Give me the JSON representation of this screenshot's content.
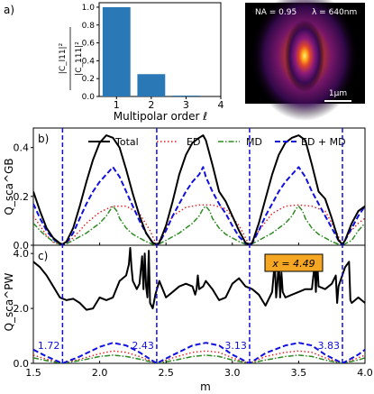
{
  "colors": {
    "total": "#000000",
    "ed": "#e41a1c",
    "md": "#2e8b22",
    "edmd": "#1010e0",
    "bar": "#2b78b6",
    "marker": "#1010e0",
    "badge_bg": "#f5a623"
  },
  "chart_data": [
    {
      "id": "a",
      "type": "bar",
      "panel_label": "a)",
      "categories": [
        "1",
        "2",
        "3"
      ],
      "values": [
        1.0,
        0.25,
        0.01
      ],
      "xlabel": "Multipolar order ℓ",
      "ylabel_num": "|C_l11|²",
      "ylabel_den": "|C_111|²",
      "xticks": [
        "1",
        "2",
        "3",
        "4"
      ],
      "yticks": [
        "0.0",
        "0.2",
        "0.4",
        "0.6",
        "0.8",
        "1.0"
      ],
      "xlim": [
        0.5,
        4
      ],
      "ylim": [
        0,
        1.05
      ]
    },
    {
      "id": "a-inset",
      "type": "heatmap",
      "na_label": "NA = 0.95",
      "lambda_label": "λ = 640nm",
      "scale_label": "1μm"
    },
    {
      "id": "b",
      "type": "line",
      "panel_label": "b)",
      "ylabel": "Q_sca^GB",
      "legend": [
        "Total",
        "ED",
        "MD",
        "ED + MD"
      ],
      "legend_position": "top",
      "xlim": [
        1.5,
        4.0
      ],
      "ylim": [
        0,
        0.48
      ],
      "yticks": [
        "0.0",
        "0.2",
        "0.4"
      ],
      "series": [
        {
          "name": "Total",
          "style": "solid",
          "x": [
            1.5,
            1.55,
            1.6,
            1.65,
            1.7,
            1.72,
            1.75,
            1.8,
            1.85,
            1.9,
            1.95,
            2.0,
            2.05,
            2.1,
            2.15,
            2.2,
            2.25,
            2.3,
            2.35,
            2.4,
            2.43,
            2.45,
            2.5,
            2.55,
            2.6,
            2.65,
            2.7,
            2.75,
            2.78,
            2.8,
            2.85,
            2.9,
            2.95,
            3.0,
            3.05,
            3.1,
            3.13,
            3.15,
            3.2,
            3.25,
            3.3,
            3.35,
            3.4,
            3.45,
            3.5,
            3.55,
            3.6,
            3.65,
            3.7,
            3.75,
            3.8,
            3.83,
            3.85,
            3.9,
            3.95,
            4.0
          ],
          "y": [
            0.22,
            0.14,
            0.07,
            0.03,
            0.008,
            0.004,
            0.015,
            0.07,
            0.16,
            0.26,
            0.35,
            0.42,
            0.45,
            0.44,
            0.4,
            0.31,
            0.21,
            0.12,
            0.05,
            0.01,
            0.004,
            0.01,
            0.08,
            0.18,
            0.29,
            0.37,
            0.42,
            0.44,
            0.45,
            0.43,
            0.33,
            0.22,
            0.18,
            0.12,
            0.06,
            0.01,
            0.004,
            0.01,
            0.09,
            0.19,
            0.29,
            0.37,
            0.42,
            0.44,
            0.45,
            0.43,
            0.33,
            0.22,
            0.19,
            0.11,
            0.02,
            0.004,
            0.02,
            0.09,
            0.14,
            0.16
          ]
        },
        {
          "name": "ED",
          "style": "dotted",
          "x": [
            1.5,
            1.55,
            1.6,
            1.65,
            1.72,
            1.8,
            1.9,
            2.0,
            2.1,
            2.2,
            2.3,
            2.38,
            2.43,
            2.48,
            2.55,
            2.65,
            2.75,
            2.85,
            2.95,
            3.05,
            3.13,
            3.2,
            3.3,
            3.4,
            3.5,
            3.6,
            3.7,
            3.78,
            3.83,
            3.88,
            3.95,
            4.0
          ],
          "y": [
            0.12,
            0.08,
            0.04,
            0.012,
            0.0,
            0.03,
            0.09,
            0.135,
            0.16,
            0.16,
            0.13,
            0.06,
            0.0,
            0.05,
            0.12,
            0.155,
            0.165,
            0.165,
            0.15,
            0.08,
            0.0,
            0.06,
            0.13,
            0.16,
            0.165,
            0.16,
            0.14,
            0.06,
            0.0,
            0.05,
            0.09,
            0.11
          ]
        },
        {
          "name": "MD",
          "style": "dashdot",
          "x": [
            1.5,
            1.55,
            1.6,
            1.65,
            1.7,
            1.72,
            1.75,
            1.8,
            1.85,
            1.9,
            1.95,
            2.0,
            2.05,
            2.08,
            2.1,
            2.13,
            2.15,
            2.2,
            2.25,
            2.3,
            2.35,
            2.4,
            2.43,
            2.45,
            2.5,
            2.55,
            2.6,
            2.65,
            2.7,
            2.75,
            2.78,
            2.8,
            2.83,
            2.85,
            2.9,
            2.95,
            3.0,
            3.05,
            3.1,
            3.13,
            3.15,
            3.2,
            3.25,
            3.3,
            3.35,
            3.4,
            3.45,
            3.48,
            3.5,
            3.53,
            3.55,
            3.6,
            3.65,
            3.7,
            3.75,
            3.8,
            3.83,
            3.85,
            3.9,
            3.95,
            4.0
          ],
          "y": [
            0.09,
            0.06,
            0.035,
            0.015,
            0.004,
            0.0,
            0.006,
            0.02,
            0.035,
            0.05,
            0.07,
            0.09,
            0.12,
            0.145,
            0.16,
            0.14,
            0.11,
            0.07,
            0.045,
            0.03,
            0.015,
            0.004,
            0.0,
            0.006,
            0.02,
            0.035,
            0.05,
            0.07,
            0.09,
            0.12,
            0.15,
            0.16,
            0.14,
            0.11,
            0.07,
            0.045,
            0.03,
            0.015,
            0.004,
            0.0,
            0.006,
            0.02,
            0.035,
            0.05,
            0.07,
            0.09,
            0.12,
            0.15,
            0.16,
            0.14,
            0.11,
            0.07,
            0.045,
            0.03,
            0.015,
            0.004,
            0.0,
            0.006,
            0.02,
            0.06,
            0.09
          ]
        },
        {
          "name": "ED + MD",
          "style": "dashed",
          "x": [
            1.5,
            1.55,
            1.6,
            1.65,
            1.7,
            1.72,
            1.75,
            1.8,
            1.85,
            1.9,
            1.95,
            2.0,
            2.05,
            2.1,
            2.15,
            2.2,
            2.25,
            2.3,
            2.35,
            2.4,
            2.43,
            2.45,
            2.5,
            2.55,
            2.6,
            2.65,
            2.7,
            2.75,
            2.78,
            2.8,
            2.85,
            2.9,
            2.95,
            3.0,
            3.05,
            3.1,
            3.13,
            3.15,
            3.2,
            3.25,
            3.3,
            3.35,
            3.4,
            3.45,
            3.5,
            3.55,
            3.6,
            3.65,
            3.7,
            3.75,
            3.8,
            3.83,
            3.85,
            3.9,
            3.95,
            4.0
          ],
          "y": [
            0.17,
            0.11,
            0.06,
            0.025,
            0.006,
            0.0,
            0.01,
            0.05,
            0.11,
            0.17,
            0.22,
            0.26,
            0.29,
            0.32,
            0.28,
            0.22,
            0.16,
            0.1,
            0.05,
            0.01,
            0.0,
            0.01,
            0.06,
            0.12,
            0.17,
            0.22,
            0.26,
            0.29,
            0.32,
            0.28,
            0.22,
            0.17,
            0.13,
            0.08,
            0.035,
            0.008,
            0.0,
            0.008,
            0.06,
            0.12,
            0.17,
            0.22,
            0.26,
            0.29,
            0.32,
            0.28,
            0.22,
            0.17,
            0.12,
            0.07,
            0.02,
            0.0,
            0.02,
            0.07,
            0.12,
            0.16
          ]
        }
      ]
    },
    {
      "id": "c",
      "type": "line",
      "panel_label": "c)",
      "ylabel": "Q_sca^PW",
      "annotation": "x = 4.49",
      "xlabel": "m",
      "xlim": [
        1.5,
        4.0
      ],
      "ylim": [
        0,
        4.3
      ],
      "xticks": [
        "1.5",
        "2.0",
        "2.5",
        "3.0",
        "3.5",
        "4.0"
      ],
      "yticks": [
        "0.0",
        "2.0",
        "4.0"
      ],
      "markers": [
        {
          "x": 1.72,
          "label": "1.72"
        },
        {
          "x": 2.43,
          "label": "2.43"
        },
        {
          "x": 3.13,
          "label": "3.13"
        },
        {
          "x": 3.83,
          "label": "3.83"
        }
      ],
      "series": [
        {
          "name": "Total",
          "style": "solid",
          "x": [
            1.5,
            1.55,
            1.6,
            1.65,
            1.7,
            1.75,
            1.8,
            1.85,
            1.9,
            1.95,
            2.0,
            2.05,
            2.1,
            2.15,
            2.2,
            2.22,
            2.23,
            2.24,
            2.25,
            2.28,
            2.3,
            2.32,
            2.33,
            2.34,
            2.35,
            2.36,
            2.37,
            2.38,
            2.4,
            2.42,
            2.45,
            2.5,
            2.55,
            2.6,
            2.65,
            2.7,
            2.72,
            2.73,
            2.74,
            2.75,
            2.78,
            2.8,
            2.85,
            2.9,
            2.95,
            3.0,
            3.05,
            3.1,
            3.15,
            3.2,
            3.25,
            3.3,
            3.32,
            3.33,
            3.34,
            3.35,
            3.36,
            3.37,
            3.38,
            3.4,
            3.45,
            3.5,
            3.55,
            3.6,
            3.62,
            3.63,
            3.64,
            3.65,
            3.7,
            3.75,
            3.78,
            3.79,
            3.8,
            3.85,
            3.88,
            3.89,
            3.9,
            3.95,
            4.0
          ],
          "y": [
            3.7,
            3.5,
            3.2,
            2.8,
            2.4,
            2.3,
            2.35,
            2.2,
            1.95,
            2.0,
            2.4,
            2.3,
            2.4,
            3.0,
            3.2,
            3.6,
            4.2,
            3.5,
            3.0,
            2.7,
            2.9,
            3.9,
            2.7,
            4.0,
            2.8,
            2.4,
            4.1,
            2.2,
            2.0,
            2.5,
            3.0,
            2.4,
            2.6,
            2.8,
            2.9,
            2.8,
            2.5,
            2.7,
            3.2,
            2.7,
            2.8,
            3.0,
            2.7,
            2.3,
            2.4,
            2.9,
            3.1,
            2.8,
            2.7,
            2.5,
            2.1,
            2.6,
            3.7,
            2.4,
            2.9,
            3.8,
            2.4,
            3.3,
            2.6,
            2.4,
            2.5,
            2.6,
            2.7,
            2.7,
            3.6,
            2.6,
            3.7,
            2.8,
            2.7,
            2.9,
            3.2,
            2.2,
            2.8,
            3.5,
            3.7,
            2.3,
            2.2,
            2.4,
            2.2
          ]
        },
        {
          "name": "ED",
          "style": "dotted",
          "x": [
            1.5,
            1.6,
            1.72,
            1.85,
            2.0,
            2.1,
            2.2,
            2.3,
            2.43,
            2.55,
            2.7,
            2.8,
            2.9,
            3.0,
            3.13,
            3.25,
            3.4,
            3.5,
            3.6,
            3.7,
            3.83,
            3.95,
            4.0
          ],
          "y": [
            0.3,
            0.15,
            0.0,
            0.15,
            0.35,
            0.45,
            0.4,
            0.25,
            0.0,
            0.2,
            0.4,
            0.45,
            0.4,
            0.2,
            0.0,
            0.25,
            0.4,
            0.45,
            0.4,
            0.2,
            0.0,
            0.2,
            0.3
          ]
        },
        {
          "name": "MD",
          "style": "dashdot",
          "x": [
            1.5,
            1.6,
            1.72,
            1.85,
            2.0,
            2.1,
            2.2,
            2.3,
            2.43,
            2.55,
            2.7,
            2.8,
            2.9,
            3.0,
            3.13,
            3.25,
            3.4,
            3.5,
            3.6,
            3.7,
            3.83,
            3.95,
            4.0
          ],
          "y": [
            0.2,
            0.1,
            0.0,
            0.1,
            0.25,
            0.3,
            0.25,
            0.15,
            0.0,
            0.1,
            0.25,
            0.3,
            0.25,
            0.12,
            0.0,
            0.12,
            0.25,
            0.3,
            0.25,
            0.12,
            0.0,
            0.12,
            0.2
          ]
        },
        {
          "name": "ED + MD",
          "style": "dashed",
          "x": [
            1.5,
            1.6,
            1.72,
            1.85,
            2.0,
            2.1,
            2.2,
            2.3,
            2.43,
            2.55,
            2.7,
            2.8,
            2.9,
            3.0,
            3.13,
            3.25,
            3.4,
            3.5,
            3.6,
            3.7,
            3.83,
            3.95,
            4.0
          ],
          "y": [
            0.5,
            0.25,
            0.0,
            0.25,
            0.6,
            0.75,
            0.65,
            0.4,
            0.0,
            0.3,
            0.65,
            0.75,
            0.65,
            0.32,
            0.0,
            0.37,
            0.65,
            0.75,
            0.65,
            0.32,
            0.0,
            0.32,
            0.5
          ]
        }
      ]
    }
  ]
}
